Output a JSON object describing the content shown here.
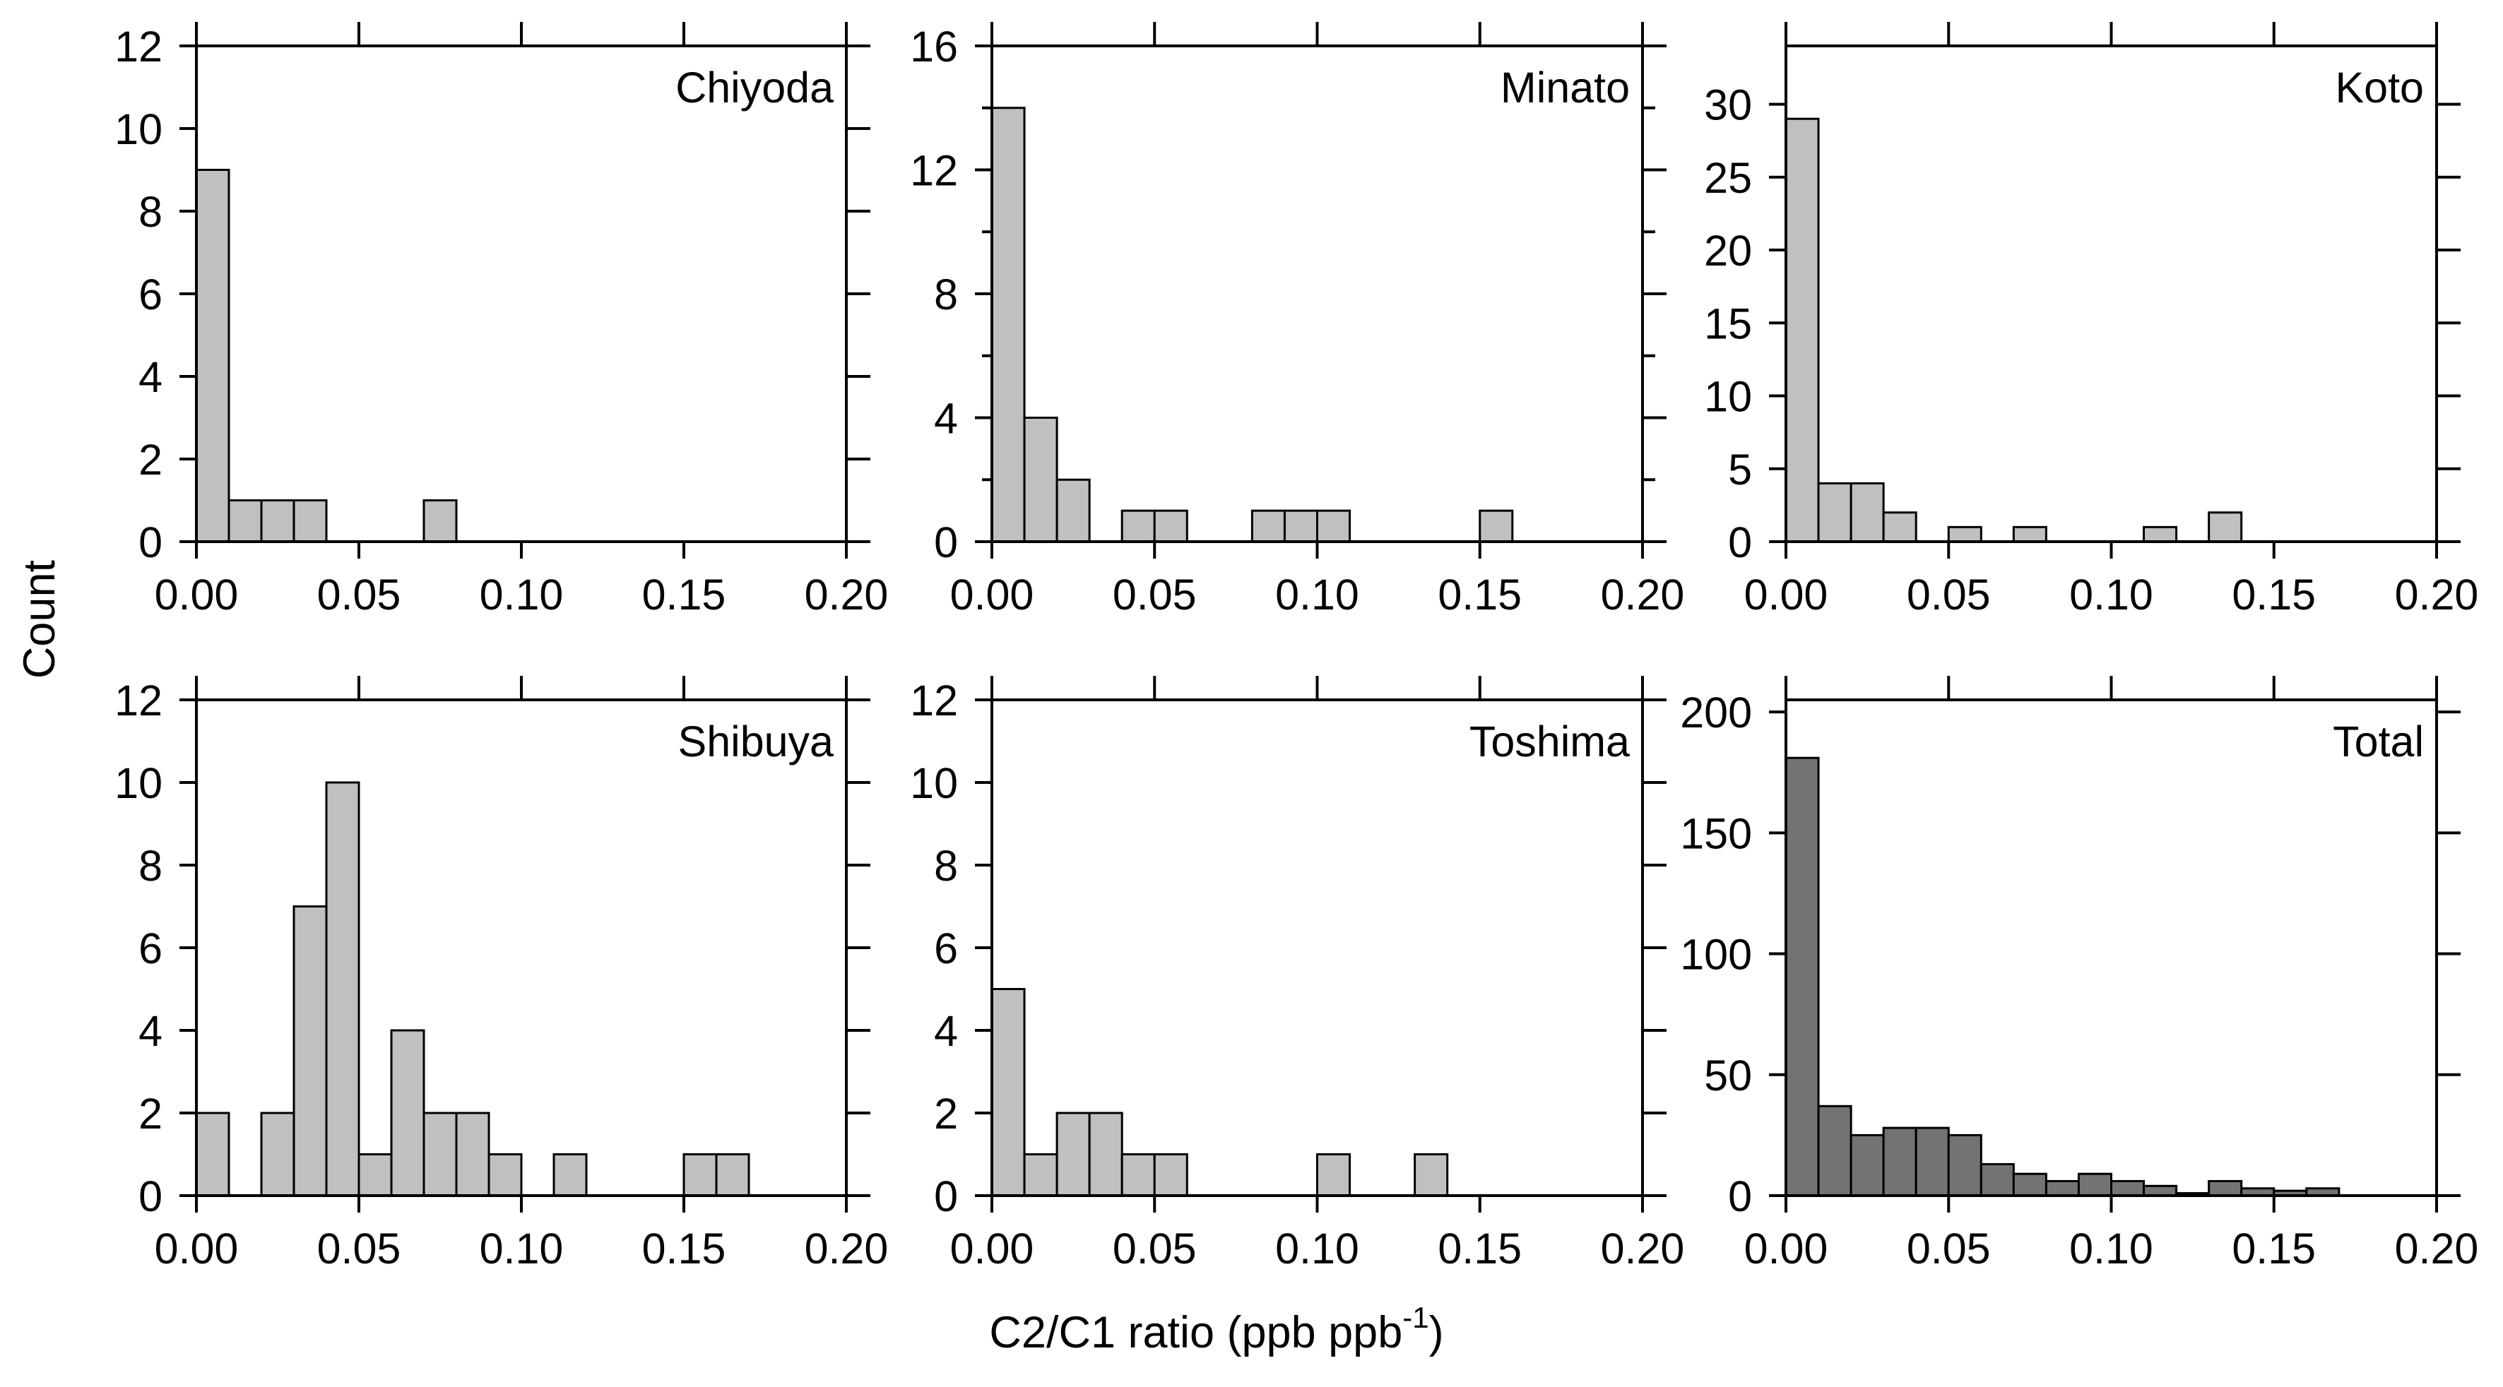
{
  "figure": {
    "ylabel": "Count",
    "xlabel": "C2/C1 ratio (ppb ppb",
    "xlabel_sup": "-1",
    "xlabel_close": ")"
  },
  "chart_data": [
    {
      "type": "bar",
      "name": "Chiyoda",
      "bin_width": 0.01,
      "bin_starts": [
        0.0,
        0.01,
        0.02,
        0.03,
        0.07
      ],
      "values": [
        9,
        1,
        1,
        1,
        1
      ],
      "xlim": [
        0,
        0.2
      ],
      "ylim": [
        0,
        12
      ],
      "xticks": [
        0.0,
        0.05,
        0.1,
        0.15,
        0.2
      ],
      "xtick_labels": [
        "0.00",
        "0.05",
        "0.10",
        "0.15",
        "0.20"
      ],
      "yticks": [
        0,
        2,
        4,
        6,
        8,
        10,
        12
      ],
      "ytick_labels": [
        "0",
        "2",
        "4",
        "6",
        "8",
        "10",
        "12"
      ],
      "minor_yticks": [],
      "fill": "#c0c0c0"
    },
    {
      "type": "bar",
      "name": "Minato",
      "bin_width": 0.01,
      "bin_starts": [
        0.0,
        0.01,
        0.02,
        0.04,
        0.05,
        0.08,
        0.09,
        0.1,
        0.15
      ],
      "values": [
        14,
        4,
        2,
        1,
        1,
        1,
        1,
        1,
        1
      ],
      "xlim": [
        0,
        0.2
      ],
      "ylim": [
        0,
        16
      ],
      "xticks": [
        0.0,
        0.05,
        0.1,
        0.15,
        0.2
      ],
      "xtick_labels": [
        "0.00",
        "0.05",
        "0.10",
        "0.15",
        "0.20"
      ],
      "yticks": [
        0,
        4,
        8,
        12,
        16
      ],
      "ytick_labels": [
        "0",
        "4",
        "8",
        "12",
        "16"
      ],
      "minor_yticks": [
        2,
        6,
        10,
        14
      ],
      "fill": "#c0c0c0"
    },
    {
      "type": "bar",
      "name": "Koto",
      "bin_width": 0.01,
      "bin_starts": [
        0.0,
        0.01,
        0.02,
        0.03,
        0.05,
        0.07,
        0.11,
        0.13
      ],
      "values": [
        29,
        4,
        4,
        2,
        1,
        1,
        1,
        2
      ],
      "xlim": [
        0,
        0.2
      ],
      "ylim": [
        0,
        34
      ],
      "xticks": [
        0.0,
        0.05,
        0.1,
        0.15,
        0.2
      ],
      "xtick_labels": [
        "0.00",
        "0.05",
        "0.10",
        "0.15",
        "0.20"
      ],
      "yticks": [
        0,
        5,
        10,
        15,
        20,
        25,
        30
      ],
      "ytick_labels": [
        "0",
        "5",
        "10",
        "15",
        "20",
        "25",
        "30"
      ],
      "minor_yticks": [],
      "fill": "#c0c0c0"
    },
    {
      "type": "bar",
      "name": "Shibuya",
      "bin_width": 0.01,
      "bin_starts": [
        0.0,
        0.02,
        0.03,
        0.04,
        0.05,
        0.06,
        0.07,
        0.08,
        0.09,
        0.11,
        0.15,
        0.16
      ],
      "values": [
        2,
        2,
        7,
        10,
        1,
        4,
        2,
        2,
        1,
        1,
        1,
        1
      ],
      "xlim": [
        0,
        0.2
      ],
      "ylim": [
        0,
        12
      ],
      "xticks": [
        0.0,
        0.05,
        0.1,
        0.15,
        0.2
      ],
      "xtick_labels": [
        "0.00",
        "0.05",
        "0.10",
        "0.15",
        "0.20"
      ],
      "yticks": [
        0,
        2,
        4,
        6,
        8,
        10,
        12
      ],
      "ytick_labels": [
        "0",
        "2",
        "4",
        "6",
        "8",
        "10",
        "12"
      ],
      "minor_yticks": [],
      "fill": "#c0c0c0"
    },
    {
      "type": "bar",
      "name": "Toshima",
      "bin_width": 0.01,
      "bin_starts": [
        0.0,
        0.01,
        0.02,
        0.03,
        0.04,
        0.05,
        0.1,
        0.13
      ],
      "values": [
        5,
        1,
        2,
        2,
        1,
        1,
        1,
        1
      ],
      "xlim": [
        0,
        0.2
      ],
      "ylim": [
        0,
        12
      ],
      "xticks": [
        0.0,
        0.05,
        0.1,
        0.15,
        0.2
      ],
      "xtick_labels": [
        "0.00",
        "0.05",
        "0.10",
        "0.15",
        "0.20"
      ],
      "yticks": [
        0,
        2,
        4,
        6,
        8,
        10,
        12
      ],
      "ytick_labels": [
        "0",
        "2",
        "4",
        "6",
        "8",
        "10",
        "12"
      ],
      "minor_yticks": [],
      "fill": "#c0c0c0"
    },
    {
      "type": "bar",
      "name": "Total",
      "bin_width": 0.01,
      "bin_starts": [
        0.0,
        0.01,
        0.02,
        0.03,
        0.04,
        0.05,
        0.06,
        0.07,
        0.08,
        0.09,
        0.1,
        0.11,
        0.12,
        0.13,
        0.14,
        0.15,
        0.16
      ],
      "values": [
        181,
        37,
        25,
        28,
        28,
        25,
        13,
        9,
        6,
        9,
        6,
        4,
        1,
        6,
        3,
        2,
        3
      ],
      "xlim": [
        0,
        0.2
      ],
      "ylim": [
        0,
        205
      ],
      "xticks": [
        0.0,
        0.05,
        0.1,
        0.15,
        0.2
      ],
      "xtick_labels": [
        "0.00",
        "0.05",
        "0.10",
        "0.15",
        "0.20"
      ],
      "yticks": [
        0,
        50,
        100,
        150,
        200
      ],
      "ytick_labels": [
        "0",
        "50",
        "100",
        "150",
        "200"
      ],
      "minor_yticks": [],
      "fill": "#737373"
    }
  ]
}
